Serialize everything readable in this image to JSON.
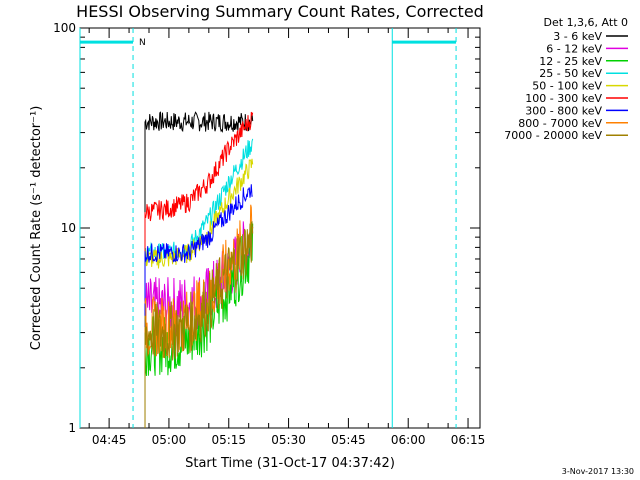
{
  "chart_data": {
    "type": "line",
    "title": "HESSI Observing Summary Count Rates, Corrected",
    "xlabel": "Start Time (31-Oct-17 04:37:42)",
    "ylabel": "Corrected Count Rate (s⁻¹ detector⁻¹)",
    "y_scale": "log",
    "ylim": [
      1,
      100
    ],
    "xlim": [
      "04:37:42",
      "06:18:00"
    ],
    "x_ticks": [
      "04:45",
      "05:00",
      "05:15",
      "05:30",
      "05:45",
      "06:00",
      "06:15"
    ],
    "y_ticks": [
      "1",
      "10",
      "100"
    ],
    "footer_date": "3-Nov-2017 13:30",
    "legend_title": "Det 1,3,6, Att 0",
    "legend_position": "right",
    "series": [
      {
        "name": "3 - 6 keV",
        "color": "#000000",
        "x": [
          "04:54",
          "05:00",
          "05:05",
          "05:10",
          "05:15",
          "05:21"
        ],
        "values": [
          34,
          34,
          34,
          34,
          34,
          34
        ]
      },
      {
        "name": "6 - 12 keV",
        "color": "#e000e0",
        "x": [
          "04:54",
          "05:00",
          "05:05",
          "05:10",
          "05:15",
          "05:21"
        ],
        "values": [
          4.0,
          4.0,
          4.2,
          4.6,
          6.0,
          9.0
        ]
      },
      {
        "name": "12 - 25 keV",
        "color": "#00d000",
        "x": [
          "04:54",
          "05:00",
          "05:05",
          "05:10",
          "05:15",
          "05:21"
        ],
        "values": [
          2.6,
          2.6,
          2.8,
          3.5,
          5.0,
          8.0
        ]
      },
      {
        "name": "25 - 50 keV",
        "color": "#00e0e0",
        "x": [
          "04:54",
          "05:00",
          "05:05",
          "05:10",
          "05:15",
          "05:21"
        ],
        "values": [
          7.5,
          7.5,
          8.0,
          11.0,
          17.0,
          27.0
        ]
      },
      {
        "name": "50 - 100 keV",
        "color": "#d8d800",
        "x": [
          "04:54",
          "05:00",
          "05:05",
          "05:10",
          "05:15",
          "05:21"
        ],
        "values": [
          7.0,
          7.0,
          7.5,
          9.5,
          14.0,
          21.0
        ]
      },
      {
        "name": "100 - 300 keV",
        "color": "#ff0000",
        "x": [
          "04:54",
          "05:00",
          "05:05",
          "05:10",
          "05:15",
          "05:21"
        ],
        "values": [
          12.0,
          12.5,
          13.5,
          17.0,
          25.0,
          36.0
        ]
      },
      {
        "name": "300 - 800 keV",
        "color": "#0000ff",
        "x": [
          "04:54",
          "05:00",
          "05:05",
          "05:10",
          "05:15",
          "05:21"
        ],
        "values": [
          7.5,
          7.5,
          7.5,
          9.0,
          12.0,
          16.0
        ]
      },
      {
        "name": "800 - 7000 keV",
        "color": "#ff8000",
        "x": [
          "04:54",
          "05:00",
          "05:05",
          "05:10",
          "05:15",
          "05:21"
        ],
        "values": [
          3.2,
          3.2,
          3.5,
          4.5,
          6.5,
          9.5
        ]
      },
      {
        "name": "7000 - 20000 keV",
        "color": "#a08000",
        "x": [
          "04:54",
          "05:00",
          "05:05",
          "05:10",
          "05:15",
          "05:21"
        ],
        "values": [
          3.0,
          3.0,
          3.3,
          4.2,
          6.0,
          9.0
        ]
      }
    ],
    "saa_flag_segments": [
      {
        "x": [
          "04:37:42",
          "04:51"
        ],
        "value": 85
      },
      {
        "x": [
          "05:56",
          "06:12"
        ],
        "value": 85
      }
    ],
    "night_marker_label": "N",
    "markers": [
      {
        "type": "solid",
        "color": "#00e0e0",
        "x": "04:37:42"
      },
      {
        "type": "dashed",
        "color": "#00e0e0",
        "x": "04:51"
      },
      {
        "type": "solid",
        "color": "#00e0e0",
        "x": "05:56"
      },
      {
        "type": "dashed",
        "color": "#00e0e0",
        "x": "06:12"
      }
    ]
  }
}
